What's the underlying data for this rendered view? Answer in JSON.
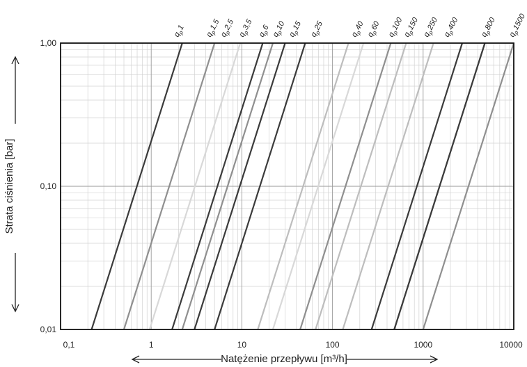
{
  "chart_data": {
    "type": "line",
    "xscale": "log",
    "yscale": "log",
    "xlim": [
      0.1,
      10000
    ],
    "ylim": [
      0.01,
      1.0
    ],
    "xlabel": "Natężenie przepływu [m³/h]",
    "ylabel": "Strata ciśnienia [bar]",
    "x_tick_labels": [
      "0,1",
      "1",
      "10",
      "100",
      "1000",
      "10000"
    ],
    "y_tick_labels": [
      "0,01",
      "0,10",
      "1,00"
    ],
    "grid": true,
    "description_of_lines": "each line follows Δp ∝ Q²; given as flow at Δp 0.01 and 1.00 bar",
    "series": [
      {
        "name": "qp 1",
        "x": [
          0.22,
          2.2
        ],
        "y": [
          0.01,
          1.0
        ],
        "color": "#3b3b3b"
      },
      {
        "name": "qp 1,5",
        "x": [
          0.5,
          5.0
        ],
        "y": [
          0.01,
          1.0
        ],
        "color": "#8f8f8f"
      },
      {
        "name": "qp 2,5",
        "x": [
          0.96,
          9.6
        ],
        "y": [
          0.01,
          1.0
        ],
        "color": "#d8d8d8"
      },
      {
        "name": "qp 3,5",
        "x": [
          1.7,
          17
        ],
        "y": [
          0.01,
          1.0
        ],
        "color": "#3b3b3b"
      },
      {
        "name": "qp 6",
        "x": [
          2.2,
          22
        ],
        "y": [
          0.01,
          1.0
        ],
        "color": "#8f8f8f"
      },
      {
        "name": "qp 10",
        "x": [
          3.0,
          30
        ],
        "y": [
          0.01,
          1.0
        ],
        "color": "#3b3b3b"
      },
      {
        "name": "qp 15",
        "x": [
          5.0,
          50
        ],
        "y": [
          0.01,
          1.0
        ],
        "color": "#3b3b3b"
      },
      {
        "name": "qp 25",
        "x": [
          15,
          150
        ],
        "y": [
          0.01,
          1.0
        ],
        "color": "#bdbdbd"
      },
      {
        "name": "qp 40",
        "x": [
          22,
          220
        ],
        "y": [
          0.01,
          1.0
        ],
        "color": "#d8d8d8"
      },
      {
        "name": "qp 60",
        "x": [
          44,
          440
        ],
        "y": [
          0.01,
          1.0
        ],
        "color": "#8f8f8f"
      },
      {
        "name": "qp 100",
        "x": [
          65,
          650
        ],
        "y": [
          0.01,
          1.0
        ],
        "color": "#bdbdbd"
      },
      {
        "name": "qp 150",
        "x": [
          130,
          1300
        ],
        "y": [
          0.01,
          1.0
        ],
        "color": "#bdbdbd"
      },
      {
        "name": "qp 250",
        "x": [
          270,
          2700
        ],
        "y": [
          0.01,
          1.0
        ],
        "color": "#3b3b3b"
      },
      {
        "name": "qp 400",
        "x": [
          480,
          4800
        ],
        "y": [
          0.01,
          1.0
        ],
        "color": "#8f8f8f"
      },
      {
        "name": "qp 800",
        "x": [
          480,
          4800
        ],
        "y": [
          0.01,
          1.0
        ],
        "color": "#3b3b3b"
      },
      {
        "name": "qp 1500",
        "x": [
          1000,
          10000
        ],
        "y": [
          0.01,
          1.0
        ],
        "color": "#8f8f8f"
      }
    ],
    "labels": [
      {
        "sub": "1",
        "text": "q",
        "x": 2.2
      },
      {
        "sub": "1,5",
        "text": "q",
        "x": 5.0
      },
      {
        "sub": "2,5",
        "text": "q",
        "x": 7.2
      },
      {
        "sub": "3,5",
        "text": "q",
        "x": 11.5
      },
      {
        "sub": "6",
        "text": "q",
        "x": 19
      },
      {
        "sub": "10",
        "text": "q",
        "x": 27
      },
      {
        "sub": "15",
        "text": "q",
        "x": 41
      },
      {
        "sub": "25",
        "text": "q",
        "x": 71
      },
      {
        "sub": "40",
        "text": "q",
        "x": 200
      },
      {
        "sub": "60",
        "text": "q",
        "x": 300
      },
      {
        "sub": "100",
        "text": "q",
        "x": 510
      },
      {
        "sub": "150",
        "text": "q",
        "x": 760
      },
      {
        "sub": "250",
        "text": "q",
        "x": 1250
      },
      {
        "sub": "400",
        "text": "q",
        "x": 2100
      },
      {
        "sub": "800",
        "text": "q",
        "x": 5400
      },
      {
        "sub": "1500",
        "text": "q",
        "x": 11000
      }
    ],
    "label_subscript_prefix": "p"
  }
}
